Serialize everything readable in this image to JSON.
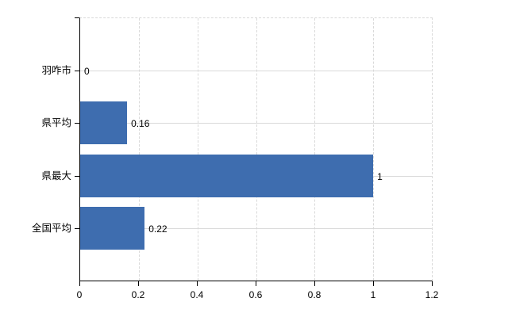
{
  "chart_data": {
    "type": "bar",
    "orientation": "horizontal",
    "title": "",
    "xlabel": "",
    "ylabel": "",
    "categories": [
      "羽咋市",
      "県平均",
      "県最大",
      "全国平均"
    ],
    "values": [
      0,
      0.16,
      1,
      0.22
    ],
    "value_labels": [
      "0",
      "0.16",
      "1",
      "0.22"
    ],
    "xlim": [
      0,
      1.2
    ],
    "x_ticks": [
      0,
      0.2,
      0.4,
      0.6,
      0.8,
      1,
      1.2
    ],
    "x_tick_labels": [
      "0",
      "0.2",
      "0.4",
      "0.6",
      "0.8",
      "1",
      "1.2"
    ],
    "legend": "none",
    "grid": {
      "vertical_gridlines": "dashed",
      "horizontal_gridlines": "solid"
    }
  },
  "colors": {
    "bar": "#3e6daf",
    "grid": "#d9d9d9",
    "axis": "#000000",
    "text": "#000000",
    "background": "#ffffff"
  }
}
